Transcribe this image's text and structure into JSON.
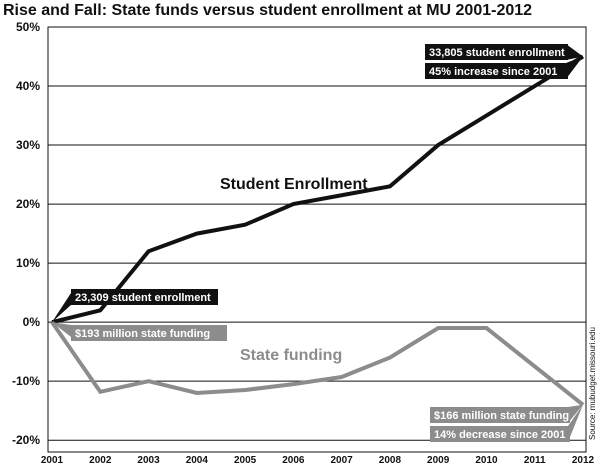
{
  "chart_data": {
    "type": "line",
    "title": "Rise and Fall: State funds versus student enrollment at MU 2001-2012",
    "xlabel": "",
    "ylabel": "",
    "categories": [
      "2001",
      "2002",
      "2003",
      "2004",
      "2005",
      "2006",
      "2007",
      "2008",
      "2009",
      "2010",
      "2011",
      "2012"
    ],
    "ylim": [
      -22,
      50
    ],
    "yticks": [
      "50%",
      "40%",
      "30%",
      "20%",
      "10%",
      "0%",
      "-10%",
      "-20%"
    ],
    "ytick_values": [
      50,
      40,
      30,
      20,
      10,
      0,
      -10,
      -20
    ],
    "grid": true,
    "series": [
      {
        "name": "Student Enrollment",
        "color": "#111111",
        "values": [
          0,
          2,
          12,
          15,
          16.5,
          20,
          21.5,
          23,
          30,
          35,
          40,
          45
        ]
      },
      {
        "name": "State funding",
        "color": "#8c8c8c",
        "values": [
          0,
          -11.8,
          -10,
          -12,
          -11.5,
          -10.5,
          -9.3,
          -6,
          -1,
          -1,
          -7.5,
          -14
        ]
      }
    ],
    "annotations": [
      {
        "text": "23,309 student enrollment",
        "style": "dark",
        "anchor": "start-enrollment"
      },
      {
        "text": "$193 million state funding",
        "style": "gray",
        "anchor": "start-funding"
      },
      {
        "text": "33,805 student enrollment",
        "style": "dark",
        "anchor": "end-enrollment"
      },
      {
        "text": "45% increase since 2001",
        "style": "dark",
        "anchor": "end-enrollment"
      },
      {
        "text": "$166 million state funding",
        "style": "gray",
        "anchor": "end-funding"
      },
      {
        "text": "14% decrease since 2001",
        "style": "gray",
        "anchor": "end-funding"
      }
    ],
    "source": "Source: mubudget.missouri.edu"
  }
}
